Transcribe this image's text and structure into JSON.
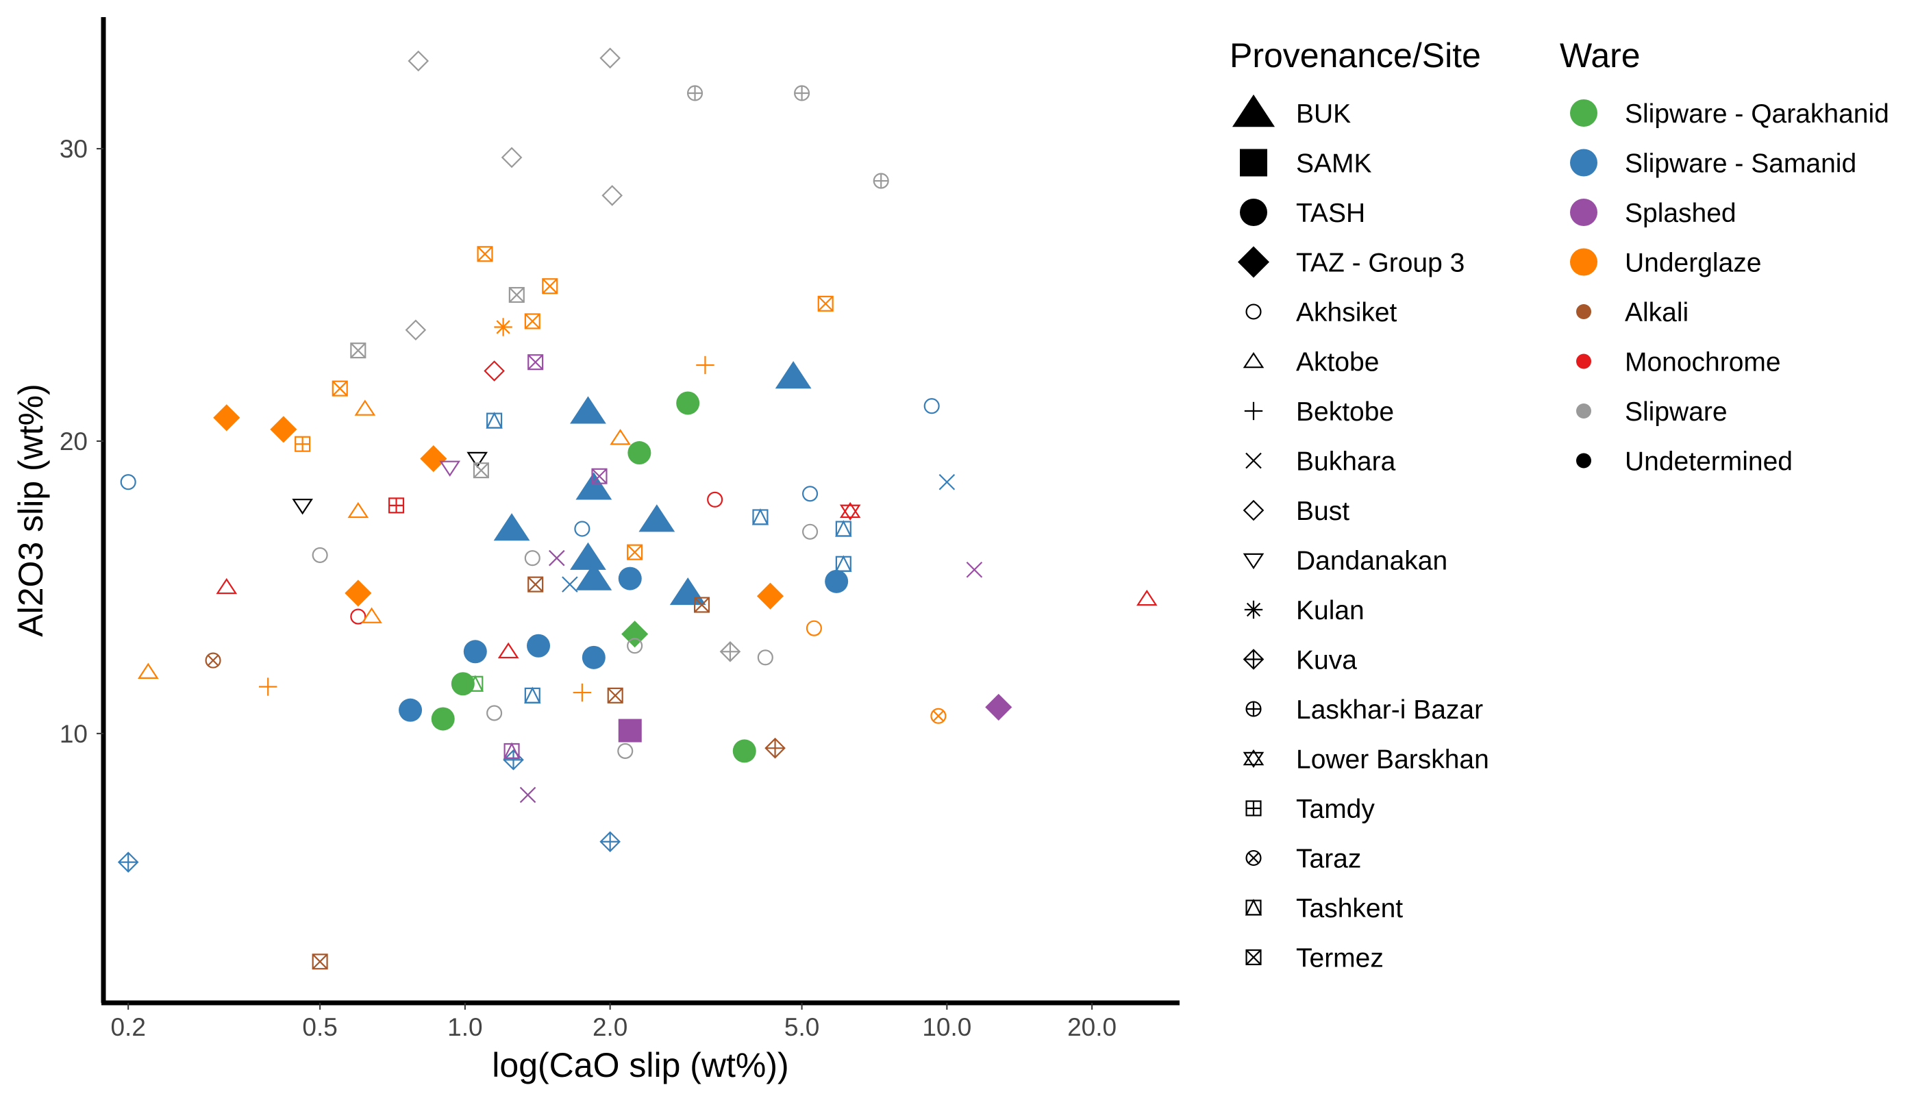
{
  "chart_data": {
    "type": "scatter",
    "xlabel": "log(CaO slip (wt%))",
    "ylabel": "Al2O3 slip (wt%)",
    "x_scale": "log",
    "xlim": [
      0.18,
      30
    ],
    "ylim": [
      1.0,
      34.5
    ],
    "x_ticks": [
      0.2,
      0.5,
      1.0,
      2.0,
      5.0,
      10.0,
      20.0
    ],
    "x_tick_labels": [
      "0.2",
      "0.5",
      "1.0",
      "2.0",
      "5.0",
      "10.0",
      "20.0"
    ],
    "y_ticks": [
      10,
      20,
      30
    ],
    "y_tick_labels": [
      "10",
      "20",
      "30"
    ],
    "grid": false,
    "legend_placement": "right",
    "colors": {
      "Slipware - Qarakhanid": "#4daf4a",
      "Slipware - Samanid": "#377eb8",
      "Splashed": "#984ea3",
      "Underglaze": "#ff7f00",
      "Alkali": "#a65628",
      "Monochrome": "#e41a1c",
      "Slipware": "#999999",
      "Undetermined": "#000000"
    },
    "legends": [
      {
        "title": "Provenance/Site",
        "entries": [
          {
            "label": "BUK",
            "shape": "triangle-filled"
          },
          {
            "label": "SAMK",
            "shape": "square-filled"
          },
          {
            "label": "TASH",
            "shape": "circle-filled"
          },
          {
            "label": "TAZ - Group 3",
            "shape": "diamond-filled"
          },
          {
            "label": "Akhsiket",
            "shape": "circle-open"
          },
          {
            "label": "Aktobe",
            "shape": "triangle-open"
          },
          {
            "label": "Bektobe",
            "shape": "plus"
          },
          {
            "label": "Bukhara",
            "shape": "cross"
          },
          {
            "label": "Bust",
            "shape": "diamond-open"
          },
          {
            "label": "Dandanakan",
            "shape": "triangle-down-open"
          },
          {
            "label": "Kulan",
            "shape": "asterisk"
          },
          {
            "label": "Kuva",
            "shape": "diamond-plus"
          },
          {
            "label": "Laskhar-i Bazar",
            "shape": "circle-plus"
          },
          {
            "label": "Lower Barskhan",
            "shape": "star-david"
          },
          {
            "label": "Tamdy",
            "shape": "square-plus"
          },
          {
            "label": "Taraz",
            "shape": "circle-cross"
          },
          {
            "label": "Tashkent",
            "shape": "square-triangle"
          },
          {
            "label": "Termez",
            "shape": "square-cross"
          }
        ]
      },
      {
        "title": "Ware",
        "entries": [
          {
            "label": "Slipware - Qarakhanid",
            "size": "large"
          },
          {
            "label": "Slipware - Samanid",
            "size": "large"
          },
          {
            "label": "Splashed",
            "size": "large"
          },
          {
            "label": "Underglaze",
            "size": "large"
          },
          {
            "label": "Alkali",
            "size": "small"
          },
          {
            "label": "Monochrome",
            "size": "small"
          },
          {
            "label": "Slipware",
            "size": "small"
          },
          {
            "label": "Undetermined",
            "size": "small"
          }
        ]
      }
    ],
    "points": [
      {
        "x": 1.25,
        "y": 17.0,
        "site": "BUK",
        "ware": "Slipware - Samanid"
      },
      {
        "x": 1.8,
        "y": 21.0,
        "site": "BUK",
        "ware": "Slipware - Samanid"
      },
      {
        "x": 1.85,
        "y": 18.4,
        "site": "BUK",
        "ware": "Slipware - Samanid"
      },
      {
        "x": 1.8,
        "y": 16.0,
        "site": "BUK",
        "ware": "Slipware - Samanid"
      },
      {
        "x": 1.85,
        "y": 15.3,
        "site": "BUK",
        "ware": "Slipware - Samanid"
      },
      {
        "x": 2.5,
        "y": 17.3,
        "site": "BUK",
        "ware": "Slipware - Samanid"
      },
      {
        "x": 2.9,
        "y": 14.8,
        "site": "BUK",
        "ware": "Slipware - Samanid"
      },
      {
        "x": 4.8,
        "y": 22.2,
        "site": "BUK",
        "ware": "Slipware - Samanid"
      },
      {
        "x": 2.2,
        "y": 10.1,
        "site": "SAMK",
        "ware": "Splashed"
      },
      {
        "x": 0.77,
        "y": 10.8,
        "site": "TASH",
        "ware": "Slipware - Samanid"
      },
      {
        "x": 1.05,
        "y": 12.8,
        "site": "TASH",
        "ware": "Slipware - Samanid"
      },
      {
        "x": 1.42,
        "y": 13.0,
        "site": "TASH",
        "ware": "Slipware - Samanid"
      },
      {
        "x": 1.85,
        "y": 12.6,
        "site": "TASH",
        "ware": "Slipware - Samanid"
      },
      {
        "x": 2.2,
        "y": 15.3,
        "site": "TASH",
        "ware": "Slipware - Samanid"
      },
      {
        "x": 5.9,
        "y": 15.2,
        "site": "TASH",
        "ware": "Slipware - Samanid"
      },
      {
        "x": 0.9,
        "y": 10.5,
        "site": "TASH",
        "ware": "Slipware - Qarakhanid"
      },
      {
        "x": 0.99,
        "y": 11.7,
        "site": "TASH",
        "ware": "Slipware - Qarakhanid"
      },
      {
        "x": 2.3,
        "y": 19.6,
        "site": "TASH",
        "ware": "Slipware - Qarakhanid"
      },
      {
        "x": 2.9,
        "y": 21.3,
        "site": "TASH",
        "ware": "Slipware - Qarakhanid"
      },
      {
        "x": 3.8,
        "y": 9.4,
        "site": "TASH",
        "ware": "Slipware - Qarakhanid"
      },
      {
        "x": 0.32,
        "y": 20.8,
        "site": "TAZ - Group 3",
        "ware": "Underglaze"
      },
      {
        "x": 0.42,
        "y": 20.4,
        "site": "TAZ - Group 3",
        "ware": "Underglaze"
      },
      {
        "x": 0.86,
        "y": 19.4,
        "site": "TAZ - Group 3",
        "ware": "Underglaze"
      },
      {
        "x": 0.6,
        "y": 14.8,
        "site": "TAZ - Group 3",
        "ware": "Underglaze"
      },
      {
        "x": 4.3,
        "y": 14.7,
        "site": "TAZ - Group 3",
        "ware": "Underglaze"
      },
      {
        "x": 2.25,
        "y": 13.4,
        "site": "TAZ - Group 3",
        "ware": "Slipware - Qarakhanid"
      },
      {
        "x": 12.8,
        "y": 10.9,
        "site": "TAZ - Group 3",
        "ware": "Splashed"
      },
      {
        "x": 0.2,
        "y": 18.6,
        "site": "Akhsiket",
        "ware": "Slipware - Samanid"
      },
      {
        "x": 0.5,
        "y": 16.1,
        "site": "Akhsiket",
        "ware": "Slipware"
      },
      {
        "x": 0.6,
        "y": 14.0,
        "site": "Akhsiket",
        "ware": "Monochrome"
      },
      {
        "x": 1.15,
        "y": 10.7,
        "site": "Akhsiket",
        "ware": "Slipware"
      },
      {
        "x": 1.38,
        "y": 16.0,
        "site": "Akhsiket",
        "ware": "Slipware"
      },
      {
        "x": 1.75,
        "y": 17.0,
        "site": "Akhsiket",
        "ware": "Slipware - Samanid"
      },
      {
        "x": 2.25,
        "y": 13.0,
        "site": "Akhsiket",
        "ware": "Slipware"
      },
      {
        "x": 2.15,
        "y": 9.4,
        "site": "Akhsiket",
        "ware": "Slipware"
      },
      {
        "x": 3.3,
        "y": 18.0,
        "site": "Akhsiket",
        "ware": "Monochrome"
      },
      {
        "x": 4.2,
        "y": 12.6,
        "site": "Akhsiket",
        "ware": "Slipware"
      },
      {
        "x": 5.2,
        "y": 18.2,
        "site": "Akhsiket",
        "ware": "Slipware - Samanid"
      },
      {
        "x": 5.2,
        "y": 16.9,
        "site": "Akhsiket",
        "ware": "Slipware"
      },
      {
        "x": 5.3,
        "y": 13.6,
        "site": "Akhsiket",
        "ware": "Underglaze"
      },
      {
        "x": 9.3,
        "y": 21.2,
        "site": "Akhsiket",
        "ware": "Slipware - Samanid"
      },
      {
        "x": 0.22,
        "y": 12.1,
        "site": "Aktobe",
        "ware": "Underglaze"
      },
      {
        "x": 0.32,
        "y": 15.0,
        "site": "Aktobe",
        "ware": "Monochrome"
      },
      {
        "x": 0.6,
        "y": 17.6,
        "site": "Aktobe",
        "ware": "Underglaze"
      },
      {
        "x": 0.62,
        "y": 21.1,
        "site": "Aktobe",
        "ware": "Underglaze"
      },
      {
        "x": 0.64,
        "y": 14.0,
        "site": "Aktobe",
        "ware": "Underglaze"
      },
      {
        "x": 1.23,
        "y": 12.8,
        "site": "Aktobe",
        "ware": "Monochrome"
      },
      {
        "x": 2.1,
        "y": 20.1,
        "site": "Aktobe",
        "ware": "Underglaze"
      },
      {
        "x": 26.0,
        "y": 14.6,
        "site": "Aktobe",
        "ware": "Monochrome"
      },
      {
        "x": 0.39,
        "y": 11.6,
        "site": "Bektobe",
        "ware": "Underglaze"
      },
      {
        "x": 1.75,
        "y": 11.4,
        "site": "Bektobe",
        "ware": "Underglaze"
      },
      {
        "x": 3.15,
        "y": 22.6,
        "site": "Bektobe",
        "ware": "Underglaze"
      },
      {
        "x": 1.55,
        "y": 16.0,
        "site": "Bukhara",
        "ware": "Splashed"
      },
      {
        "x": 1.65,
        "y": 15.1,
        "site": "Bukhara",
        "ware": "Slipware - Samanid"
      },
      {
        "x": 1.35,
        "y": 7.9,
        "site": "Bukhara",
        "ware": "Splashed"
      },
      {
        "x": 10.0,
        "y": 18.6,
        "site": "Bukhara",
        "ware": "Slipware - Samanid"
      },
      {
        "x": 11.4,
        "y": 15.6,
        "site": "Bukhara",
        "ware": "Splashed"
      },
      {
        "x": 0.8,
        "y": 33.0,
        "site": "Bust",
        "ware": "Slipware"
      },
      {
        "x": 2.0,
        "y": 33.1,
        "site": "Bust",
        "ware": "Slipware"
      },
      {
        "x": 1.25,
        "y": 29.7,
        "site": "Bust",
        "ware": "Slipware"
      },
      {
        "x": 2.02,
        "y": 28.4,
        "site": "Bust",
        "ware": "Slipware"
      },
      {
        "x": 0.79,
        "y": 23.8,
        "site": "Bust",
        "ware": "Slipware"
      },
      {
        "x": 1.15,
        "y": 22.4,
        "site": "Bust",
        "ware": "Monochrome"
      },
      {
        "x": 0.46,
        "y": 17.8,
        "site": "Dandanakan",
        "ware": "Undetermined"
      },
      {
        "x": 1.06,
        "y": 19.4,
        "site": "Dandanakan",
        "ware": "Undetermined"
      },
      {
        "x": 0.93,
        "y": 19.1,
        "site": "Dandanakan",
        "ware": "Splashed"
      },
      {
        "x": 1.2,
        "y": 23.9,
        "site": "Kulan",
        "ware": "Underglaze"
      },
      {
        "x": 0.2,
        "y": 5.6,
        "site": "Kuva",
        "ware": "Slipware - Samanid"
      },
      {
        "x": 2.0,
        "y": 6.3,
        "site": "Kuva",
        "ware": "Slipware - Samanid"
      },
      {
        "x": 1.26,
        "y": 9.1,
        "site": "Kuva",
        "ware": "Slipware - Samanid"
      },
      {
        "x": 3.55,
        "y": 12.8,
        "site": "Kuva",
        "ware": "Slipware"
      },
      {
        "x": 4.4,
        "y": 9.5,
        "site": "Kuva",
        "ware": "Alkali"
      },
      {
        "x": 3.0,
        "y": 31.9,
        "site": "Laskhar-i Bazar",
        "ware": "Slipware"
      },
      {
        "x": 5.0,
        "y": 31.9,
        "site": "Laskhar-i Bazar",
        "ware": "Slipware"
      },
      {
        "x": 7.3,
        "y": 28.9,
        "site": "Laskhar-i Bazar",
        "ware": "Slipware"
      },
      {
        "x": 6.3,
        "y": 17.6,
        "site": "Lower Barskhan",
        "ware": "Monochrome"
      },
      {
        "x": 0.72,
        "y": 17.8,
        "site": "Tamdy",
        "ware": "Monochrome"
      },
      {
        "x": 0.46,
        "y": 19.9,
        "site": "Tamdy",
        "ware": "Underglaze"
      },
      {
        "x": 0.3,
        "y": 12.5,
        "site": "Taraz",
        "ware": "Alkali"
      },
      {
        "x": 9.6,
        "y": 10.6,
        "site": "Taraz",
        "ware": "Underglaze"
      },
      {
        "x": 1.1,
        "y": 26.4,
        "site": "Termez",
        "ware": "Underglaze"
      },
      {
        "x": 1.5,
        "y": 25.3,
        "site": "Termez",
        "ware": "Underglaze"
      },
      {
        "x": 1.28,
        "y": 25.0,
        "site": "Termez",
        "ware": "Slipware"
      },
      {
        "x": 1.38,
        "y": 24.1,
        "site": "Termez",
        "ware": "Underglaze"
      },
      {
        "x": 0.6,
        "y": 23.1,
        "site": "Termez",
        "ware": "Slipware"
      },
      {
        "x": 0.55,
        "y": 21.8,
        "site": "Termez",
        "ware": "Underglaze"
      },
      {
        "x": 1.4,
        "y": 22.7,
        "site": "Termez",
        "ware": "Splashed"
      },
      {
        "x": 1.9,
        "y": 18.8,
        "site": "Termez",
        "ware": "Splashed"
      },
      {
        "x": 1.08,
        "y": 19.0,
        "site": "Termez",
        "ware": "Slipware"
      },
      {
        "x": 5.6,
        "y": 24.7,
        "site": "Termez",
        "ware": "Underglaze"
      },
      {
        "x": 1.4,
        "y": 15.1,
        "site": "Termez",
        "ware": "Alkali"
      },
      {
        "x": 2.25,
        "y": 16.2,
        "site": "Termez",
        "ware": "Underglaze"
      },
      {
        "x": 3.1,
        "y": 14.4,
        "site": "Termez",
        "ware": "Alkali"
      },
      {
        "x": 2.05,
        "y": 11.3,
        "site": "Termez",
        "ware": "Alkali"
      },
      {
        "x": 0.5,
        "y": 2.2,
        "site": "Termez",
        "ware": "Alkali"
      },
      {
        "x": 1.15,
        "y": 20.7,
        "site": "Tashkent",
        "ware": "Slipware - Samanid"
      },
      {
        "x": 1.05,
        "y": 11.7,
        "site": "Tashkent",
        "ware": "Slipware - Qarakhanid"
      },
      {
        "x": 1.38,
        "y": 11.3,
        "site": "Tashkent",
        "ware": "Slipware - Samanid"
      },
      {
        "x": 1.25,
        "y": 9.4,
        "site": "Tashkent",
        "ware": "Splashed"
      },
      {
        "x": 4.1,
        "y": 17.4,
        "site": "Tashkent",
        "ware": "Slipware - Samanid"
      },
      {
        "x": 6.1,
        "y": 17.0,
        "site": "Tashkent",
        "ware": "Slipware - Samanid"
      },
      {
        "x": 6.1,
        "y": 15.8,
        "site": "Tashkent",
        "ware": "Slipware - Samanid"
      }
    ]
  }
}
